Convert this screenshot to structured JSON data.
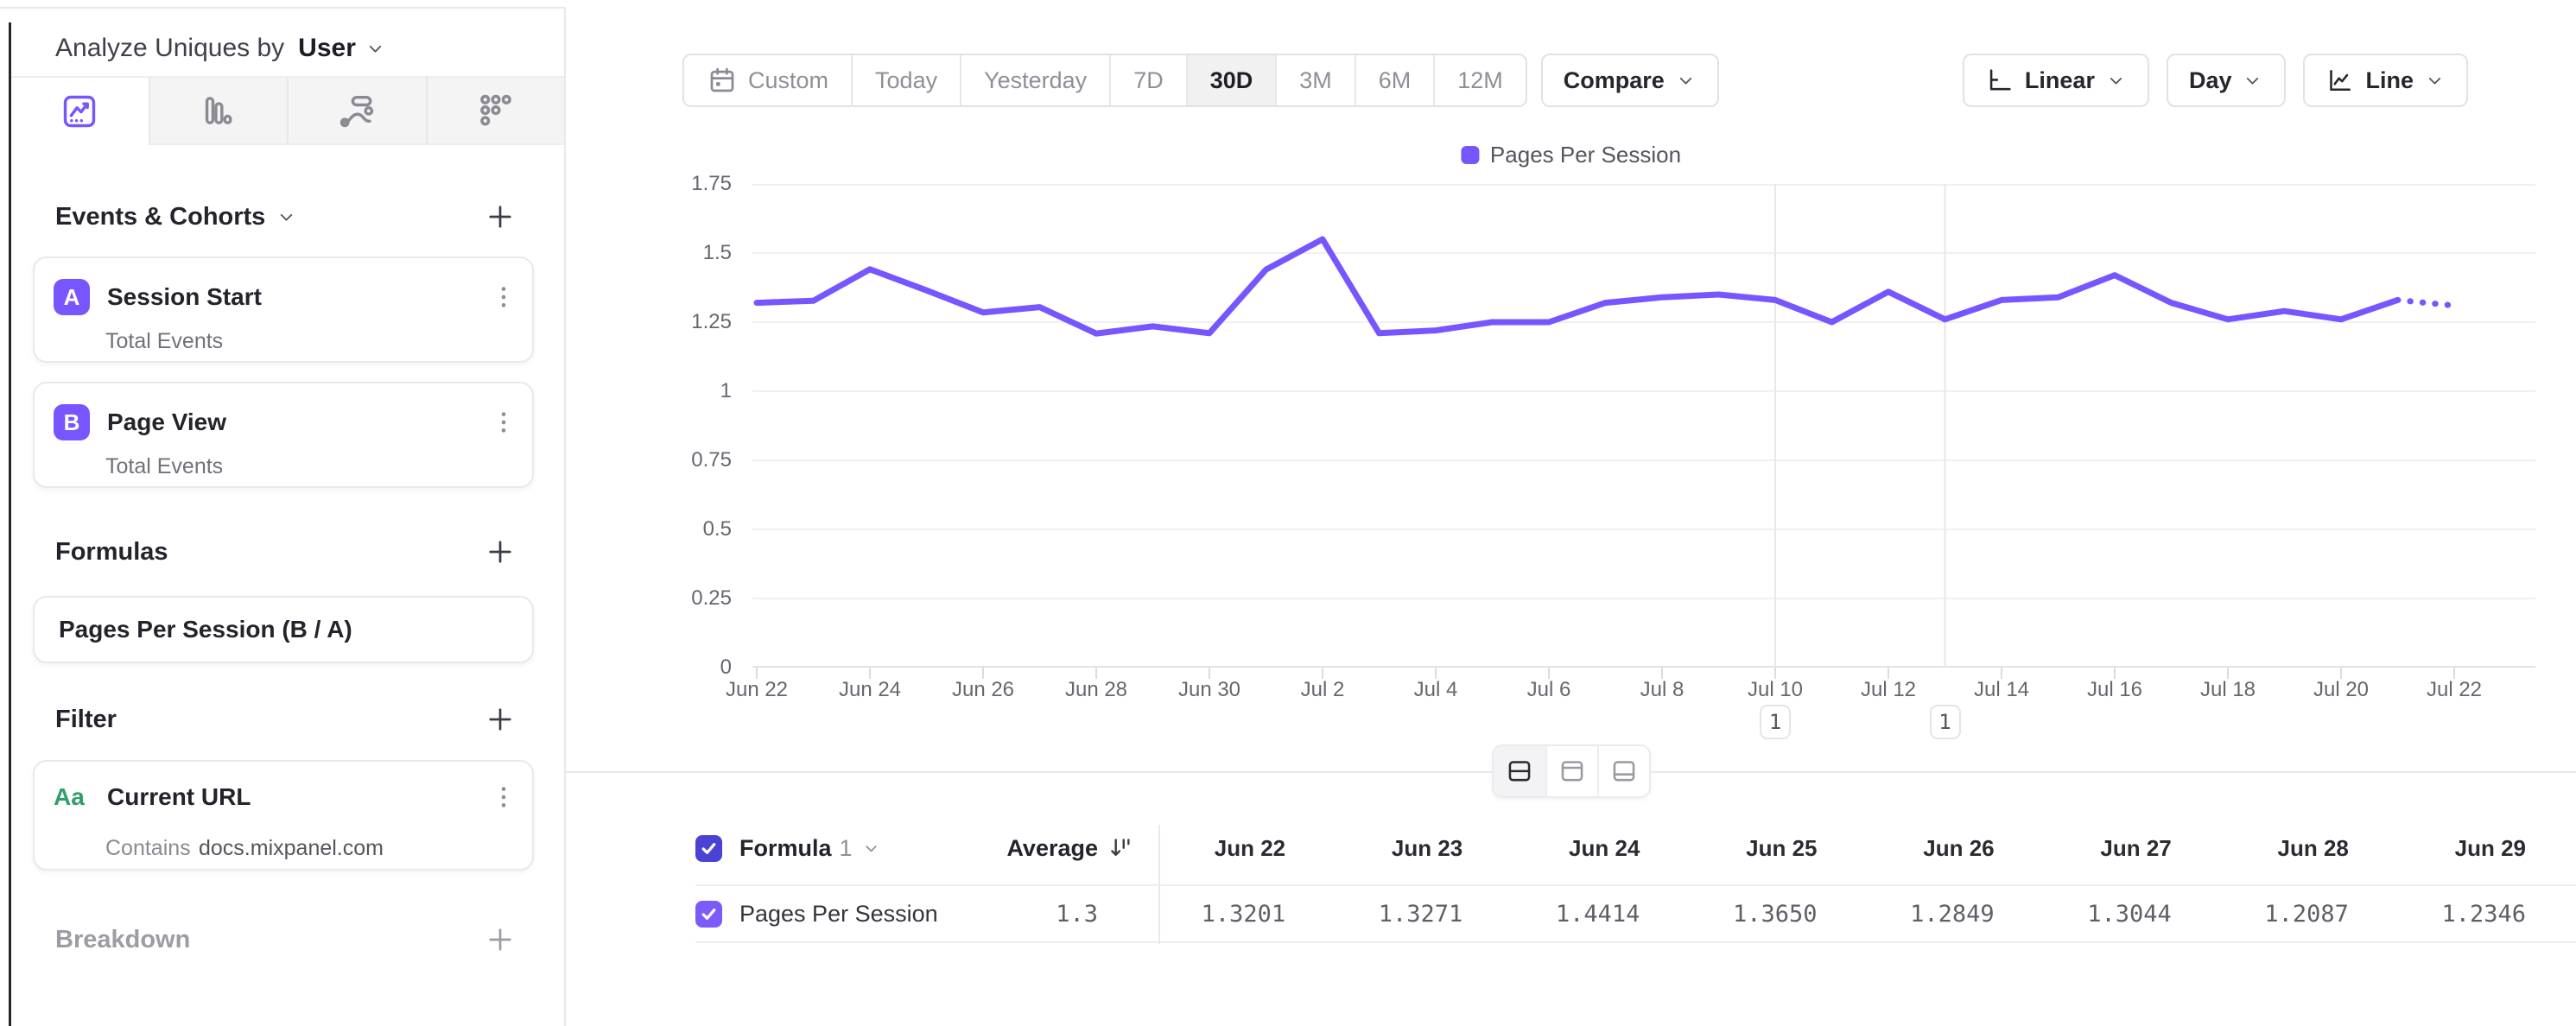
{
  "header": {
    "prefix": "Analyze Uniques by",
    "selector": "User"
  },
  "sidebar": {
    "tabs": [
      {
        "name": "insights-tab",
        "icon": "insights-line-chart-icon",
        "active": true
      },
      {
        "name": "bar-tab",
        "icon": "bar-chart-icon",
        "active": false
      },
      {
        "name": "flows-tab",
        "icon": "flows-icon",
        "active": false
      },
      {
        "name": "retention-tab",
        "icon": "retention-grid-icon",
        "active": false
      }
    ],
    "events_section": {
      "title": "Events & Cohorts"
    },
    "events": [
      {
        "letter": "A",
        "name": "Session Start",
        "subtitle": "Total Events"
      },
      {
        "letter": "B",
        "name": "Page View",
        "subtitle": "Total Events"
      }
    ],
    "formulas_section": {
      "title": "Formulas"
    },
    "formulas": [
      {
        "name": "Pages Per Session (B / A)"
      }
    ],
    "filter_section": {
      "title": "Filter"
    },
    "filters": [
      {
        "type_badge": "Aa",
        "name": "Current URL",
        "operator": "Contains",
        "value": "docs.mixpanel.com"
      }
    ],
    "breakdown_section": {
      "title": "Breakdown"
    }
  },
  "toolbar": {
    "date_ranges": [
      "Custom",
      "Today",
      "Yesterday",
      "7D",
      "30D",
      "3M",
      "6M",
      "12M"
    ],
    "selected_range": "30D",
    "compare_label": "Compare",
    "scale_label": "Linear",
    "granularity_label": "Day",
    "chart_type_label": "Line"
  },
  "chart_data": {
    "type": "line",
    "series_name": "Pages Per Session",
    "color": "#7856ff",
    "x": [
      "Jun 22",
      "Jun 23",
      "Jun 24",
      "Jun 25",
      "Jun 26",
      "Jun 27",
      "Jun 28",
      "Jun 29",
      "Jun 30",
      "Jul 1",
      "Jul 2",
      "Jul 3",
      "Jul 4",
      "Jul 5",
      "Jul 6",
      "Jul 7",
      "Jul 8",
      "Jul 9",
      "Jul 10",
      "Jul 11",
      "Jul 12",
      "Jul 13",
      "Jul 14",
      "Jul 15",
      "Jul 16",
      "Jul 17",
      "Jul 18",
      "Jul 19",
      "Jul 20",
      "Jul 21",
      "Jul 22"
    ],
    "values": [
      1.3201,
      1.3271,
      1.4414,
      1.365,
      1.2849,
      1.3044,
      1.2087,
      1.2346,
      1.21,
      1.44,
      1.55,
      1.21,
      1.22,
      1.25,
      1.25,
      1.32,
      1.34,
      1.35,
      1.33,
      1.25,
      1.36,
      1.26,
      1.33,
      1.34,
      1.42,
      1.32,
      1.26,
      1.29,
      1.26,
      1.33,
      1.31
    ],
    "dashed_from_index": 29,
    "ylim": [
      0,
      1.75
    ],
    "ytick_labels": [
      "0",
      "0.25",
      "0.5",
      "0.75",
      "1",
      "1.25",
      "1.5",
      "1.75"
    ],
    "x_axis_labels": [
      "Jun 22",
      "Jun 24",
      "Jun 26",
      "Jun 28",
      "Jun 30",
      "Jul 2",
      "Jul 4",
      "Jul 6",
      "Jul 8",
      "Jul 10",
      "Jul 12",
      "Jul 14",
      "Jul 16",
      "Jul 18",
      "Jul 20",
      "Jul 22"
    ],
    "annotations": [
      {
        "label": "1",
        "day_index": 18,
        "date": "Jul 10"
      },
      {
        "label": "1",
        "day_index": 21,
        "date": "Jul 13"
      }
    ],
    "legend": [
      "Pages Per Session"
    ],
    "grid": "horizontal"
  },
  "view_toggle": {
    "options": [
      "split-view",
      "chart-view",
      "table-view"
    ],
    "active": "split-view"
  },
  "table": {
    "formula_label": "Formula",
    "formula_number": "1",
    "average_label": "Average",
    "date_columns": [
      "Jun 22",
      "Jun 23",
      "Jun 24",
      "Jun 25",
      "Jun 26",
      "Jun 27",
      "Jun 28",
      "Jun 29"
    ],
    "rows": [
      {
        "name": "Pages Per Session",
        "checked": true,
        "average": "1.3",
        "values": [
          "1.3201",
          "1.3271",
          "1.4414",
          "1.3650",
          "1.2849",
          "1.3044",
          "1.2087",
          "1.2346"
        ]
      }
    ]
  },
  "colors": {
    "accent": "#7856ff",
    "accent_dark": "#4a42d4",
    "string_green": "#2f9e68"
  }
}
